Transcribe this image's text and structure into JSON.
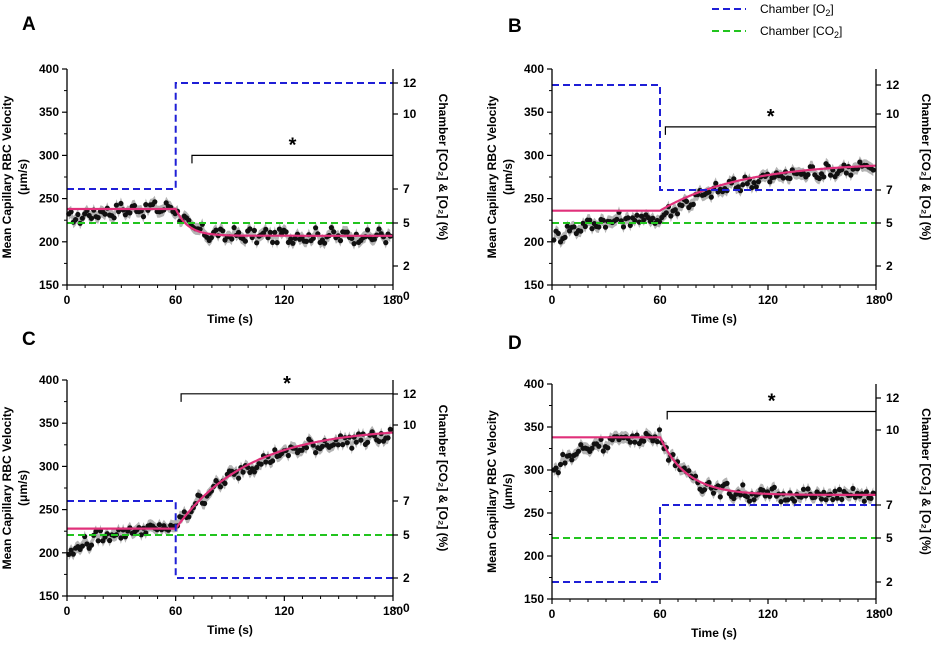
{
  "legend": {
    "o2_label": "Chamber [O",
    "o2_sub": "2",
    "o2_close": "]",
    "co2_label": "Chamber [CO",
    "co2_sub": "2",
    "co2_close": "]"
  },
  "colors": {
    "o2": "#1f1fd6",
    "co2": "#22c41f",
    "fit": "#e0307a",
    "band": "#b4b4b4",
    "points": "#111111"
  },
  "chart_data": [
    {
      "id": "A",
      "type": "scatter",
      "panel_label": "A",
      "xlabel": "Time (s)",
      "ylabel_line1": "Mean Capillary RBC Velocity",
      "ylabel_line2": "(μm/s)",
      "y2label": "Chamber [CO₂] & [O₂] (%)",
      "xlim": [
        0,
        180
      ],
      "ylim": [
        150,
        400
      ],
      "xticks": [
        0,
        60,
        120,
        180
      ],
      "yticks": [
        150,
        200,
        250,
        300,
        350,
        400
      ],
      "y2ticks": [
        0,
        2,
        5,
        7,
        10,
        12
      ],
      "o2_steps": [
        [
          0,
          60,
          7
        ],
        [
          60,
          180,
          12
        ]
      ],
      "co2_steps": [
        [
          0,
          180,
          5
        ]
      ],
      "fit": {
        "baseline": 238,
        "final": 207,
        "t0": 60,
        "tau": 7
      },
      "data_trend": {
        "start": 224,
        "pre_end": 240,
        "final": 207
      },
      "star_bracket": {
        "from": 69,
        "to": 180,
        "y": 300
      },
      "star": "*"
    },
    {
      "id": "B",
      "type": "scatter",
      "panel_label": "B",
      "xlabel": "Time (s)",
      "ylabel_line1": "Mean Capillary RBC Velocity",
      "ylabel_line2": "(μm/s)",
      "y2label": "Chamber [CO₂] & [O₂] (%)",
      "xlim": [
        0,
        180
      ],
      "ylim": [
        150,
        400
      ],
      "xticks": [
        0,
        60,
        120,
        180
      ],
      "yticks": [
        150,
        200,
        250,
        300,
        350,
        400
      ],
      "y2ticks": [
        0,
        2,
        5,
        7,
        10,
        12
      ],
      "o2_steps": [
        [
          0,
          60,
          12
        ],
        [
          60,
          180,
          7
        ]
      ],
      "co2_steps": [
        [
          0,
          180,
          5
        ]
      ],
      "fit": {
        "baseline": 236,
        "final": 292,
        "t0": 60,
        "tau": 45
      },
      "data_trend": {
        "start": 203,
        "pre_end": 228,
        "final": 290
      },
      "star_bracket": {
        "from": 63,
        "to": 180,
        "y": 333
      },
      "star": "*"
    },
    {
      "id": "C",
      "type": "scatter",
      "panel_label": "C",
      "xlabel": "Time (s)",
      "ylabel_line1": "Mean Capillary RBC Velocity",
      "ylabel_line2": "(μm/s)",
      "y2label": "Chamber [CO₂] & [O₂] (%)",
      "xlim": [
        0,
        180
      ],
      "ylim": [
        150,
        400
      ],
      "xticks": [
        0,
        60,
        120,
        180
      ],
      "yticks": [
        150,
        200,
        250,
        300,
        350,
        400
      ],
      "y2ticks": [
        0,
        2,
        5,
        7,
        10,
        12
      ],
      "o2_steps": [
        [
          0,
          60,
          7
        ],
        [
          60,
          180,
          2
        ]
      ],
      "co2_steps": [
        [
          0,
          180,
          5
        ]
      ],
      "fit": {
        "baseline": 228,
        "final": 345,
        "t0": 60,
        "tau": 40
      },
      "data_trend": {
        "start": 197,
        "pre_end": 230,
        "final": 340
      },
      "star_bracket": {
        "from": 63,
        "to": 180,
        "y": 384
      },
      "star": "*"
    },
    {
      "id": "D",
      "type": "scatter",
      "panel_label": "D",
      "xlabel": "Time (s)",
      "ylabel_line1": "Mean Capillary RBC Velocity",
      "ylabel_line2": "(μm/s)",
      "y2label": "Chamber [CO₂] & [O₂] (%)",
      "xlim": [
        0,
        180
      ],
      "ylim": [
        150,
        400
      ],
      "xticks": [
        0,
        60,
        120,
        180
      ],
      "yticks": [
        150,
        200,
        250,
        300,
        350,
        400
      ],
      "y2ticks": [
        0,
        2,
        5,
        7,
        10,
        12
      ],
      "o2_steps": [
        [
          0,
          60,
          2
        ],
        [
          60,
          180,
          7
        ]
      ],
      "co2_steps": [
        [
          0,
          180,
          5
        ]
      ],
      "fit": {
        "baseline": 338,
        "final": 271,
        "t0": 60,
        "tau": 15
      },
      "data_trend": {
        "start": 298,
        "pre_end": 340,
        "final": 270
      },
      "star_bracket": {
        "from": 64,
        "to": 180,
        "y": 368
      },
      "star": "*"
    }
  ]
}
